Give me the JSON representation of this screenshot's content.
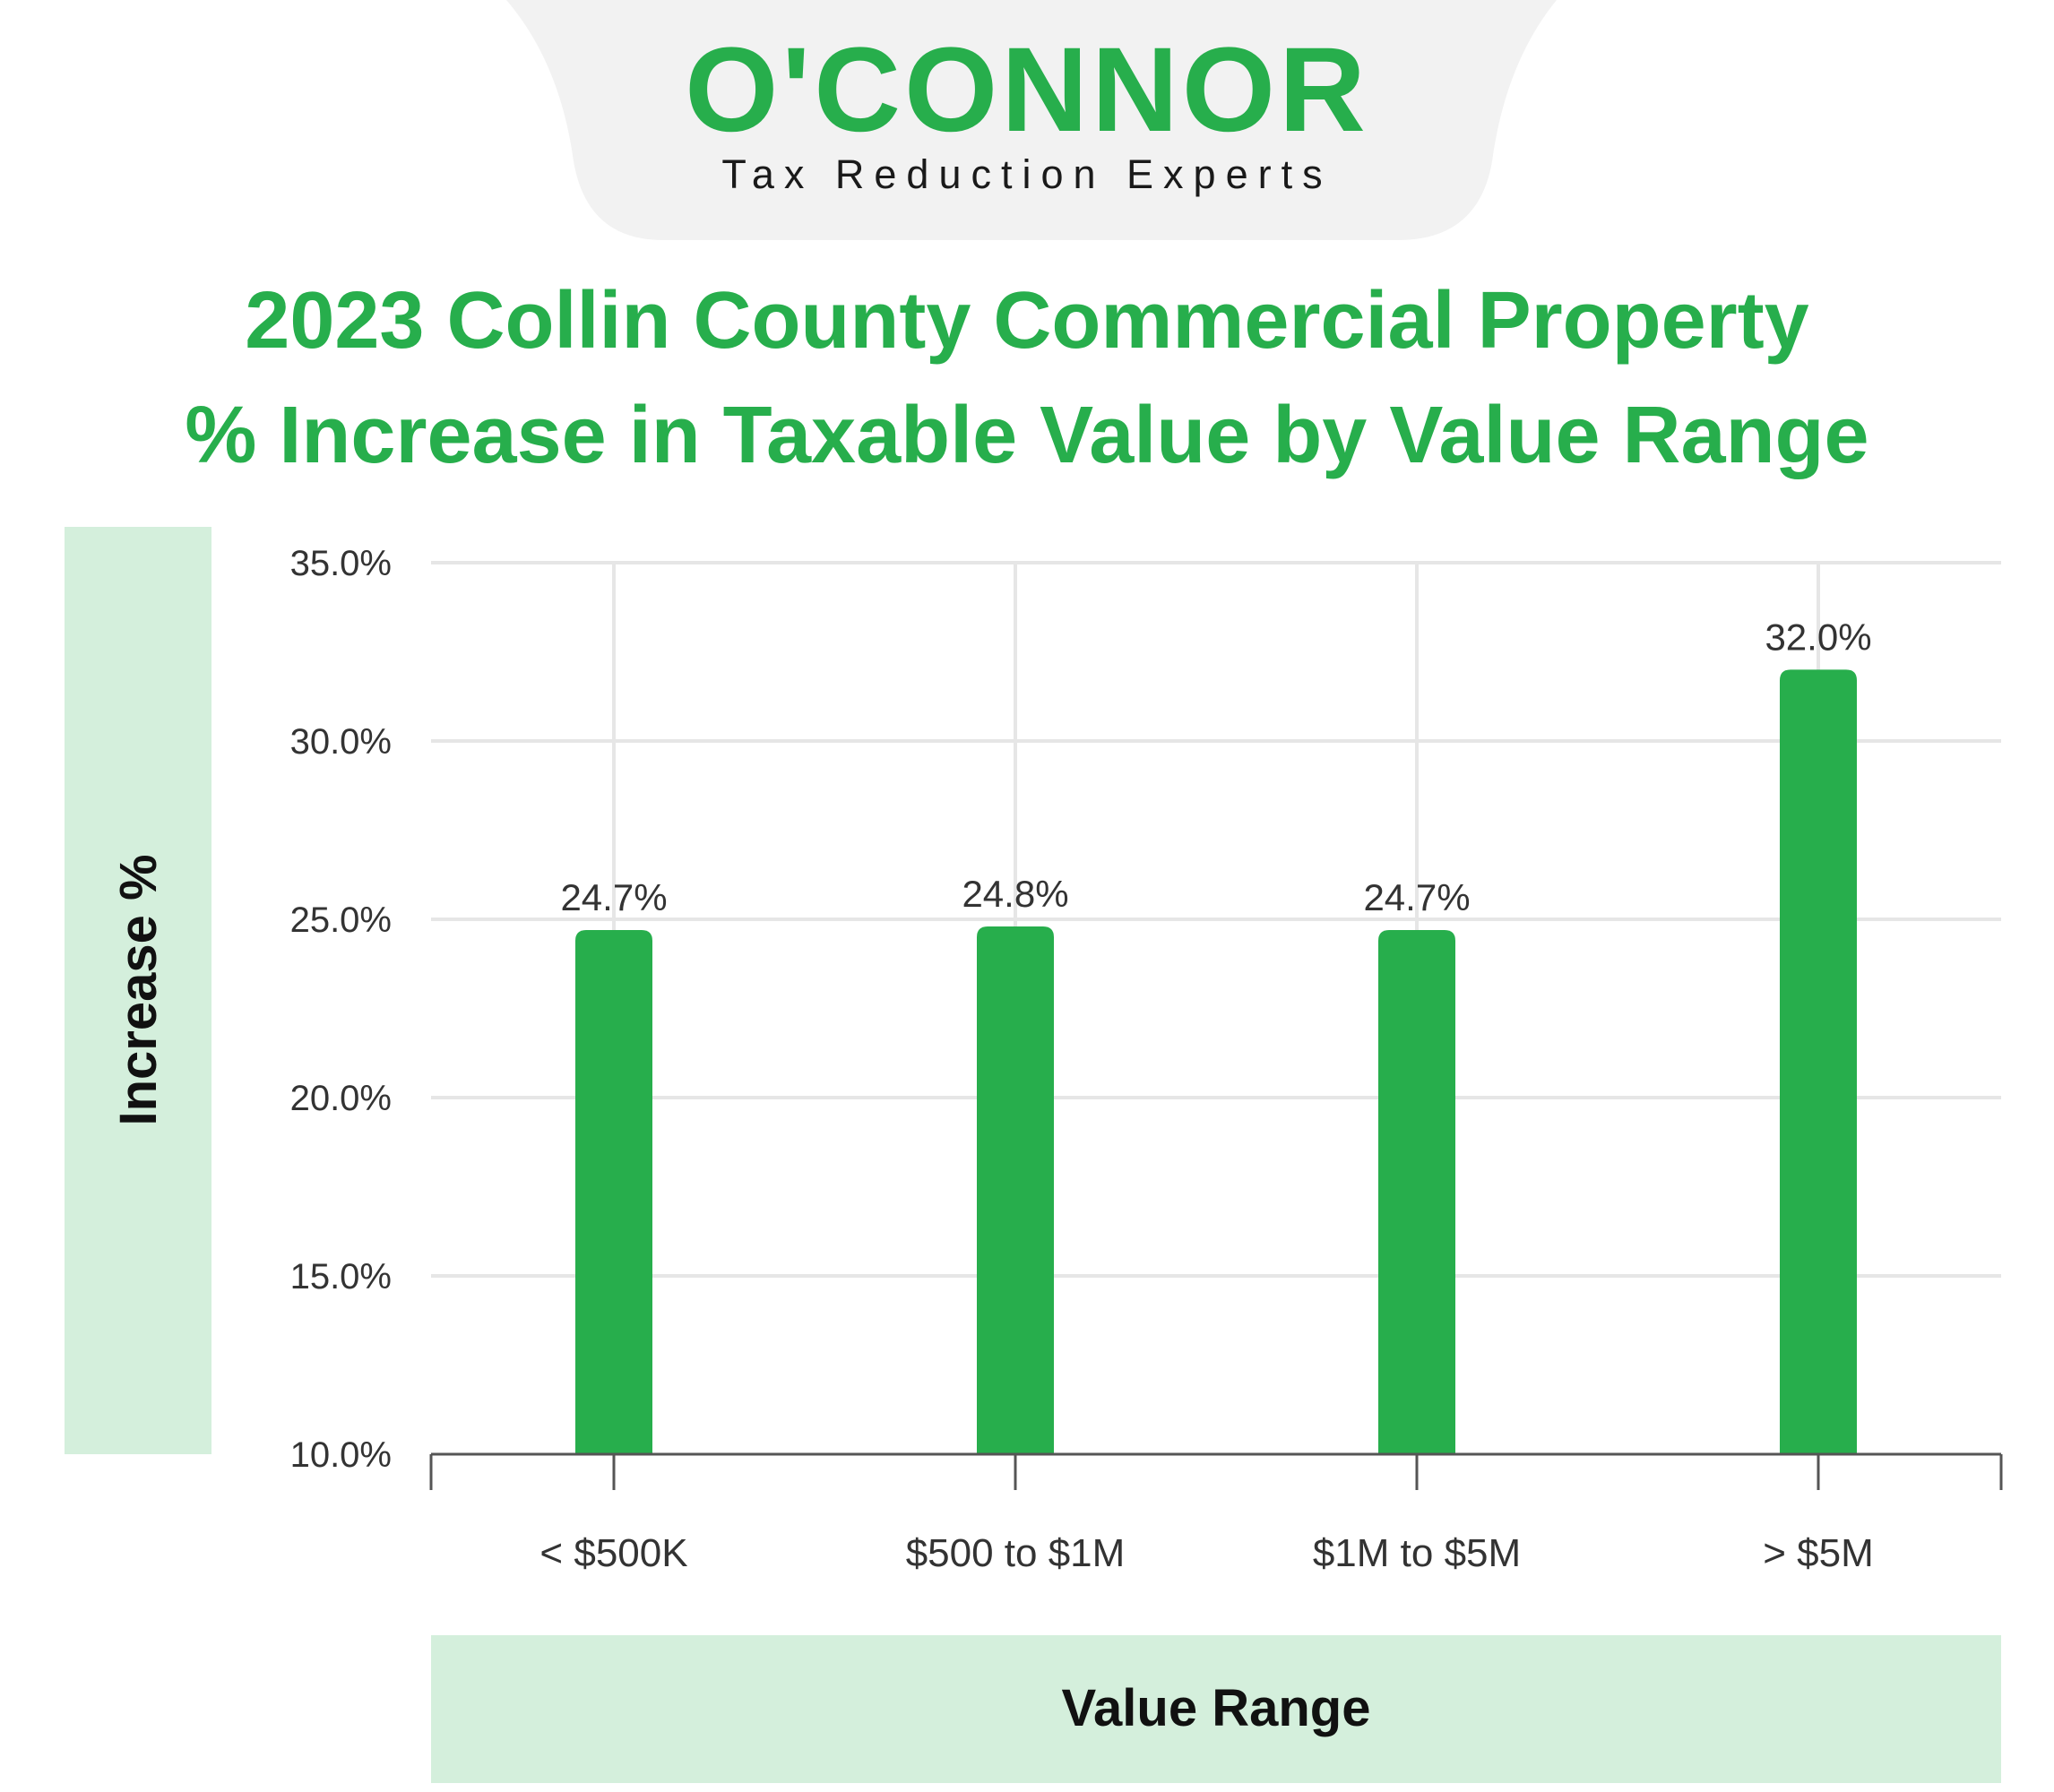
{
  "brand": {
    "logo_text": "O'CONNOR",
    "tagline": "Tax Reduction Experts",
    "color": "#27ae4c"
  },
  "colors": {
    "bar": "#27ae4c",
    "title": "#27ae4c",
    "label_panel": "#d4efdc",
    "grid": "#e6e6e6",
    "axis": "#555555",
    "header_bg": "#f2f2f2"
  },
  "chart_data": {
    "type": "bar",
    "title_line1": "2023 Collin County Commercial Property",
    "title_line2": "% Increase in Taxable Value by Value Range",
    "xlabel": "Value Range",
    "ylabel": "Increase %",
    "categories": [
      "< $500K",
      "$500 to $1M",
      "$1M to $5M",
      "> $5M"
    ],
    "values": [
      24.7,
      24.8,
      24.7,
      32.0
    ],
    "value_labels": [
      "24.7%",
      "24.8%",
      "24.7%",
      "32.0%"
    ],
    "ylim": [
      10,
      35
    ],
    "yticks": [
      10,
      15,
      20,
      25,
      30,
      35
    ],
    "ytick_labels": [
      "10.0%",
      "15.0%",
      "20.0%",
      "25.0%",
      "30.0%",
      "35.0%"
    ],
    "grid": true,
    "legend": "none"
  }
}
